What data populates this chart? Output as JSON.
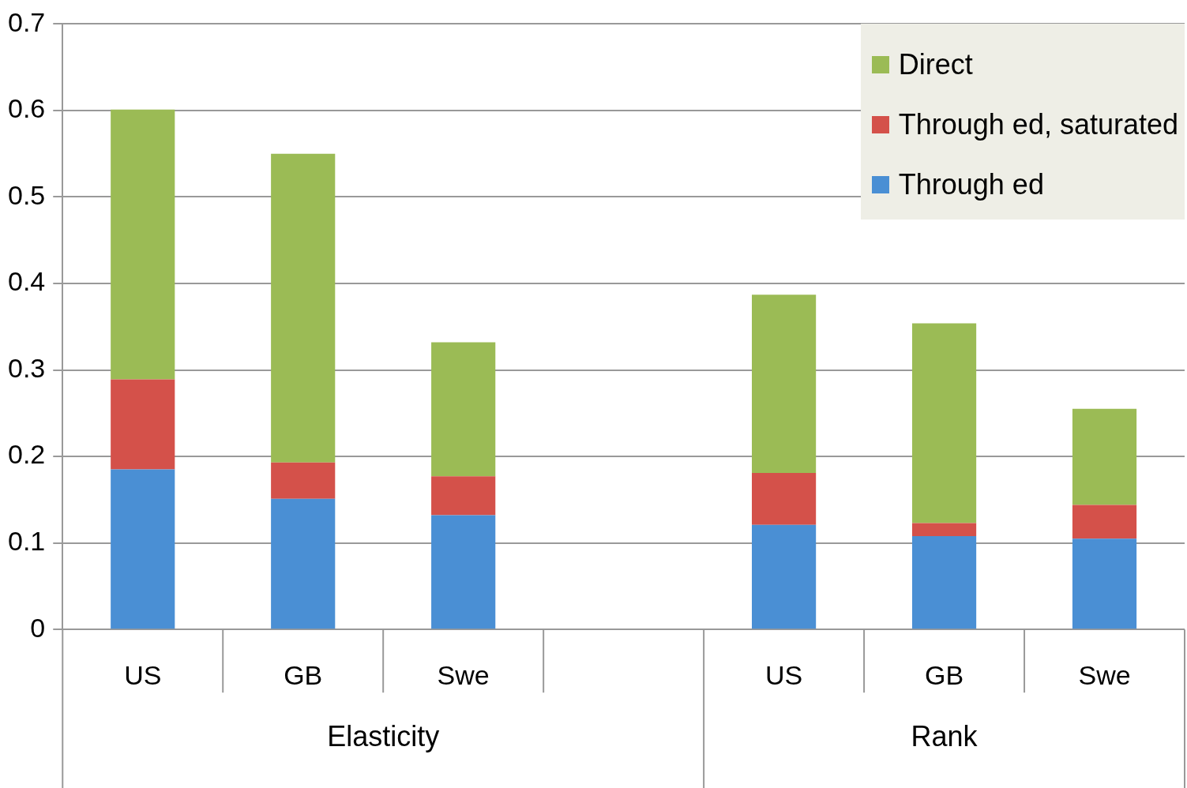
{
  "chart_data": {
    "type": "bar",
    "stacked": true,
    "categories": [
      "US",
      "GB",
      "Swe",
      null,
      "US",
      "GB",
      "Swe"
    ],
    "series": [
      {
        "name": "Through ed",
        "color": "#4a8fd4",
        "values": [
          0.185,
          0.151,
          0.132,
          null,
          0.121,
          0.108,
          0.105
        ]
      },
      {
        "name": "Through ed, saturated",
        "color": "#d4514a",
        "values": [
          0.104,
          0.042,
          0.045,
          null,
          0.06,
          0.015,
          0.039
        ]
      },
      {
        "name": "Direct",
        "color": "#9bbb55",
        "values": [
          0.312,
          0.357,
          0.155,
          null,
          0.206,
          0.231,
          0.111
        ]
      }
    ],
    "annotations": [
      "Elasticity",
      "Rank"
    ],
    "ylim": [
      0,
      0.7
    ],
    "yticks": [
      0,
      0.1,
      0.2,
      0.3,
      0.4,
      0.5,
      0.6,
      0.7
    ],
    "grid": "y",
    "legend": "top right"
  }
}
